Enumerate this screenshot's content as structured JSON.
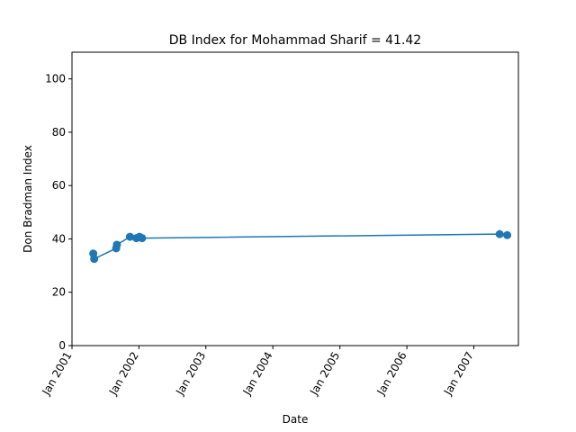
{
  "chart_data": {
    "type": "line",
    "title": "DB Index for Mohammad Sharif = 41.42",
    "xlabel": "Date",
    "ylabel": "Don Bradman Index",
    "x_axis": "date",
    "xlim": [
      "2001-01-01",
      "2007-09-01"
    ],
    "ylim": [
      0,
      110
    ],
    "yticks": [
      0,
      20,
      40,
      60,
      80,
      100
    ],
    "xticks": [
      {
        "date": "2001-01-01",
        "label": "Jan 2001"
      },
      {
        "date": "2002-01-01",
        "label": "Jan 2002"
      },
      {
        "date": "2003-01-01",
        "label": "Jan 2003"
      },
      {
        "date": "2004-01-01",
        "label": "Jan 2004"
      },
      {
        "date": "2005-01-01",
        "label": "Jan 2005"
      },
      {
        "date": "2006-01-01",
        "label": "Jan 2006"
      },
      {
        "date": "2007-01-01",
        "label": "Jan 2007"
      }
    ],
    "grid": false,
    "color": "#1f77b4",
    "series": [
      {
        "points": [
          {
            "x": "2001-04-27",
            "y": 34.5
          },
          {
            "x": "2001-05-02",
            "y": 32.5
          },
          {
            "x": "2001-08-30",
            "y": 36.5
          },
          {
            "x": "2001-09-03",
            "y": 37.8
          },
          {
            "x": "2001-11-13",
            "y": 40.8
          },
          {
            "x": "2001-12-18",
            "y": 40.3
          },
          {
            "x": "2002-01-04",
            "y": 40.8
          },
          {
            "x": "2002-01-18",
            "y": 40.3
          },
          {
            "x": "2007-05-22",
            "y": 41.8
          },
          {
            "x": "2007-07-02",
            "y": 41.42
          }
        ]
      }
    ]
  }
}
